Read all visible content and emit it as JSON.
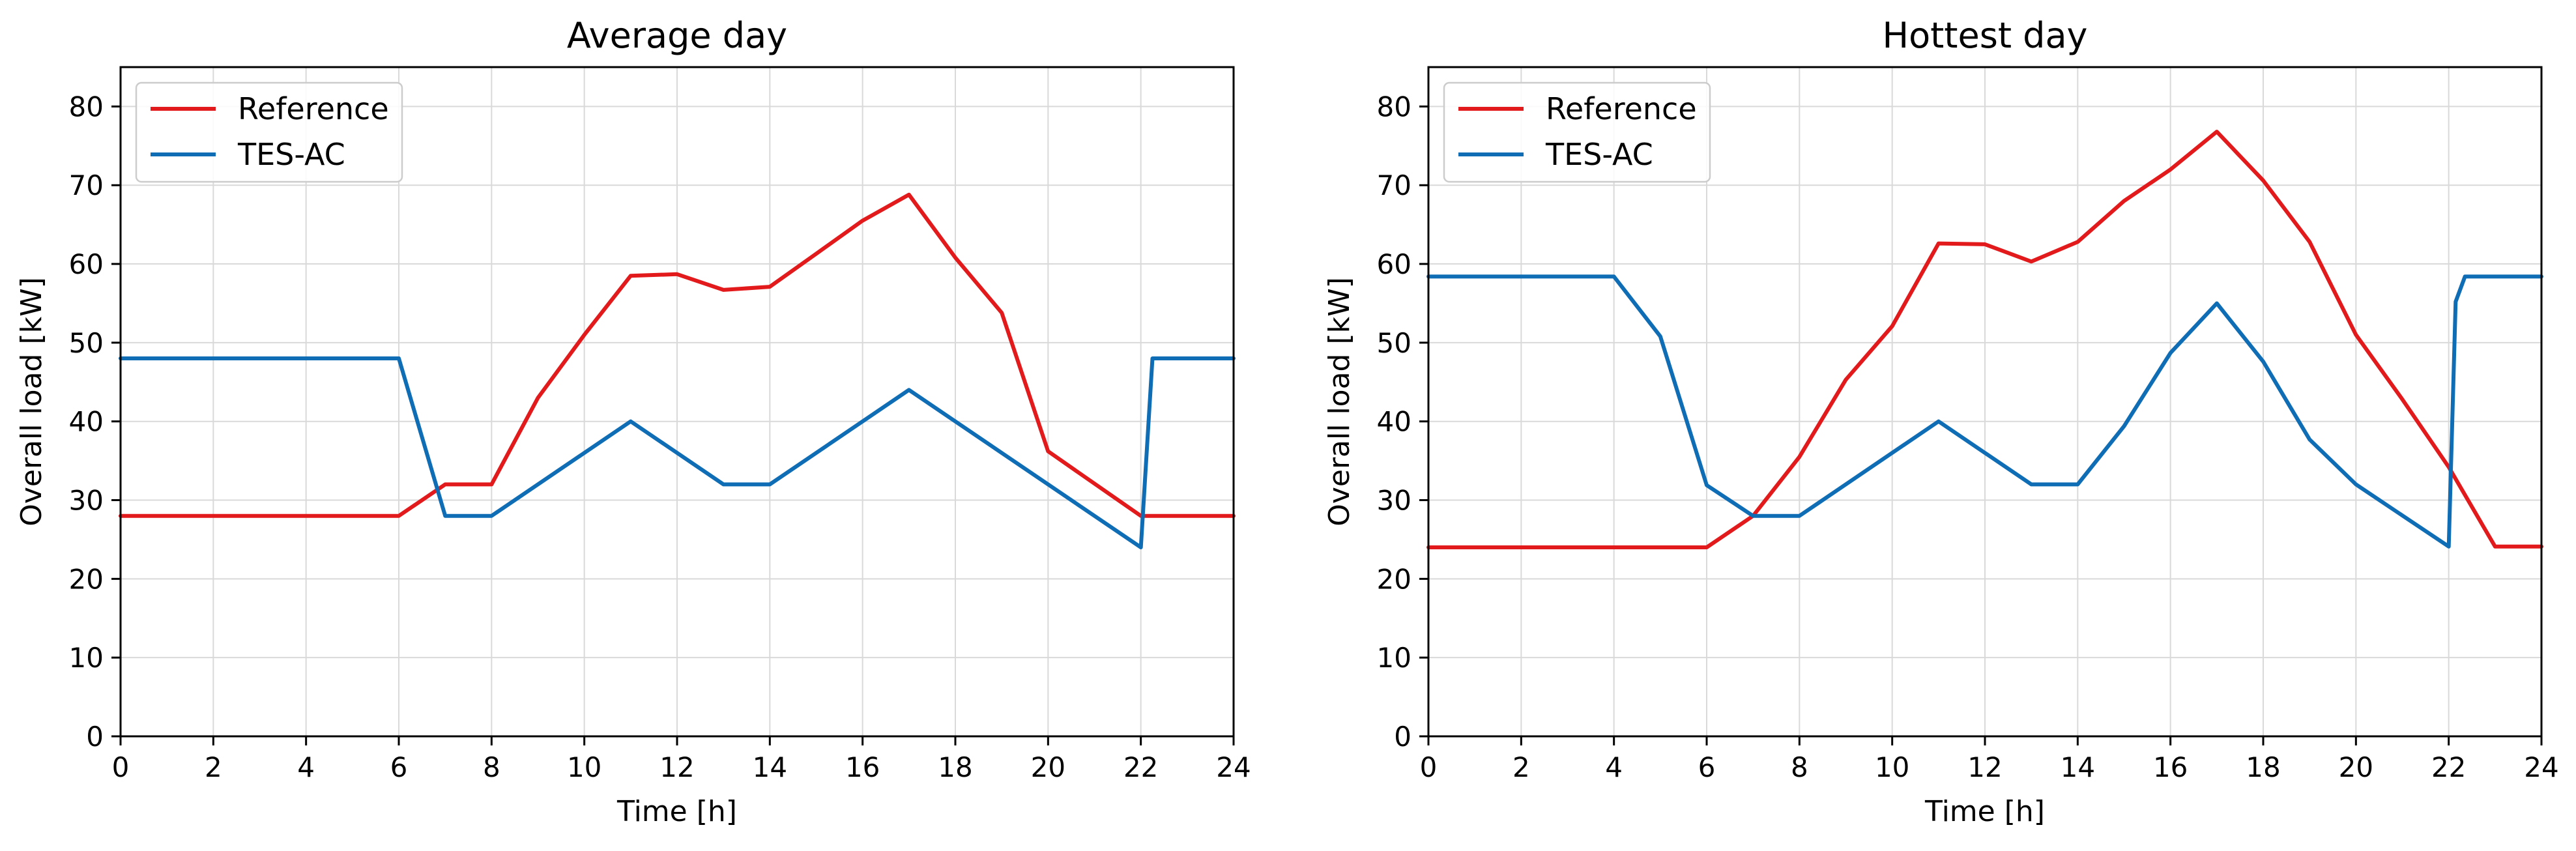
{
  "chart_data": [
    {
      "type": "line",
      "title": "Average day",
      "xlabel": "Time [h]",
      "ylabel": "Overall load [kW]",
      "xlim": [
        0,
        24
      ],
      "ylim": [
        0,
        85
      ],
      "xticks": [
        0,
        2,
        4,
        6,
        8,
        10,
        12,
        14,
        16,
        18,
        20,
        22,
        24
      ],
      "yticks": [
        0,
        10,
        20,
        30,
        40,
        50,
        60,
        70,
        80
      ],
      "grid": true,
      "legend_position": "upper-left",
      "series": [
        {
          "name": "Reference",
          "color": "#e31a1c",
          "x": [
            0,
            6,
            7,
            8,
            9,
            10,
            11,
            12,
            13,
            14,
            15,
            16,
            17,
            18,
            19,
            20,
            21,
            22,
            23,
            24
          ],
          "y": [
            28,
            28,
            32,
            32,
            43,
            51,
            58.5,
            58.7,
            56.7,
            57.1,
            61.3,
            65.5,
            68.8,
            60.8,
            53.8,
            36.2,
            32.1,
            28,
            28,
            28
          ]
        },
        {
          "name": "TES-AC",
          "color": "#0e6db5",
          "x": [
            0,
            6,
            7,
            8,
            11,
            13,
            14,
            17,
            22,
            22.25,
            24
          ],
          "y": [
            48,
            48,
            28,
            28,
            40,
            32,
            32,
            44,
            24,
            48,
            48
          ]
        }
      ]
    },
    {
      "type": "line",
      "title": "Hottest day",
      "xlabel": "Time [h]",
      "ylabel": "Overall load [kW]",
      "xlim": [
        0,
        24
      ],
      "ylim": [
        0,
        85
      ],
      "xticks": [
        0,
        2,
        4,
        6,
        8,
        10,
        12,
        14,
        16,
        18,
        20,
        22,
        24
      ],
      "yticks": [
        0,
        10,
        20,
        30,
        40,
        50,
        60,
        70,
        80
      ],
      "grid": true,
      "legend_position": "upper-left",
      "series": [
        {
          "name": "Reference",
          "color": "#e31a1c",
          "x": [
            0,
            6,
            7,
            8,
            9,
            10,
            11,
            12,
            13,
            14,
            15,
            16,
            17,
            18,
            19,
            20,
            21,
            22,
            23,
            24
          ],
          "y": [
            24,
            24,
            28,
            35.5,
            45.3,
            52.1,
            62.6,
            62.5,
            60.3,
            62.8,
            68,
            72,
            76.8,
            70.6,
            62.8,
            51,
            42.8,
            34.2,
            24.1,
            24.1
          ]
        },
        {
          "name": "TES-AC",
          "color": "#0e6db5",
          "x": [
            0,
            4,
            5,
            6,
            7,
            8,
            11,
            13,
            14,
            15,
            16,
            17,
            18,
            19,
            20,
            22,
            22.15,
            22.35,
            24
          ],
          "y": [
            58.4,
            58.4,
            50.8,
            31.9,
            28,
            28,
            40,
            32,
            32,
            39.4,
            48.7,
            55,
            47.6,
            37.7,
            32,
            24.1,
            55.2,
            58.4,
            58.4
          ]
        }
      ]
    }
  ]
}
